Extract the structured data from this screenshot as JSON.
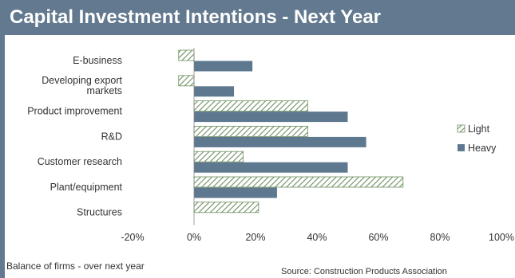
{
  "header": {
    "title": "Capital Investment Intentions - Next Year"
  },
  "footer": {
    "note": "Balance of firms - over next year",
    "source": "Source: Construction Products Association"
  },
  "colors": {
    "header_bg": "#62798f",
    "heavy": "#5e7890",
    "light_stroke": "#6d8f5f",
    "light_fill": "#ffffff",
    "text": "#333333"
  },
  "chart_data": {
    "type": "bar",
    "orientation": "horizontal",
    "categories": [
      [
        "E-business"
      ],
      [
        "Developing export",
        "markets"
      ],
      [
        "Product improvement"
      ],
      [
        "R&D"
      ],
      [
        "Customer research"
      ],
      [
        "Plant/equipment"
      ],
      [
        "Structures"
      ]
    ],
    "series": [
      {
        "name": "Light",
        "pattern": "hatched",
        "values": [
          -5,
          -5,
          37,
          37,
          16,
          68,
          21
        ]
      },
      {
        "name": "Heavy",
        "pattern": "solid",
        "values": [
          19,
          13,
          50,
          56,
          50,
          27,
          null
        ]
      }
    ],
    "xlim": [
      -20,
      100
    ],
    "xticks": [
      -20,
      0,
      20,
      40,
      60,
      80,
      100
    ],
    "tick_suffix": "%",
    "legend_position": "right"
  }
}
